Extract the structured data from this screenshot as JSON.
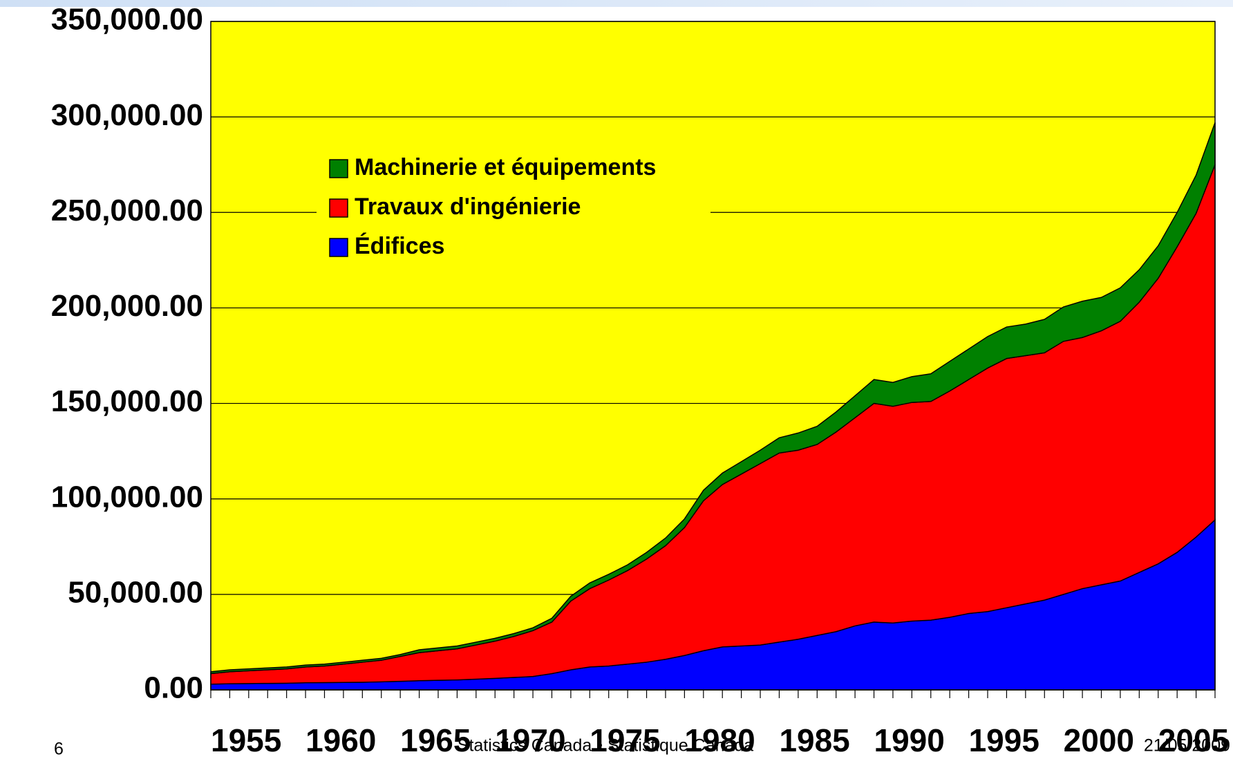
{
  "chart_data": {
    "type": "stacked-area",
    "x": [
      1955,
      1956,
      1957,
      1958,
      1959,
      1960,
      1961,
      1962,
      1963,
      1964,
      1965,
      1966,
      1967,
      1968,
      1969,
      1970,
      1971,
      1972,
      1973,
      1974,
      1975,
      1976,
      1977,
      1978,
      1979,
      1980,
      1981,
      1982,
      1983,
      1984,
      1985,
      1986,
      1987,
      1988,
      1989,
      1990,
      1991,
      1992,
      1993,
      1994,
      1995,
      1996,
      1997,
      1998,
      1999,
      2000,
      2001,
      2002,
      2003,
      2004,
      2005,
      2006,
      2007,
      2008
    ],
    "series": [
      {
        "name": "Édifices",
        "color": "#0000ff",
        "values": [
          3000,
          3200,
          3300,
          3400,
          3500,
          3700,
          3800,
          3900,
          4000,
          4200,
          4500,
          4800,
          5000,
          5200,
          5600,
          6000,
          6500,
          7000,
          8500,
          10500,
          12000,
          12500,
          13500,
          14500,
          16000,
          18000,
          20500,
          22500,
          23000,
          23500,
          25000,
          26500,
          28500,
          30500,
          33500,
          35500,
          35000,
          36000,
          36500,
          38000,
          40000,
          41000,
          43000,
          45000,
          47000,
          50000,
          53000,
          55000,
          57000,
          61500,
          66000,
          72000,
          80000,
          89000
        ]
      },
      {
        "name": "Travaux d'ingénierie",
        "color": "#ff0000",
        "values": [
          5500,
          6300,
          6700,
          7100,
          7500,
          8300,
          8700,
          9600,
          10500,
          11300,
          13000,
          14700,
          15500,
          16300,
          17900,
          19500,
          21500,
          24000,
          27000,
          36000,
          41000,
          45000,
          49000,
          54000,
          59500,
          67000,
          78500,
          85000,
          90000,
          95000,
          99000,
          99000,
          100000,
          104500,
          109000,
          114500,
          113500,
          114500,
          114500,
          118500,
          122500,
          127500,
          130500,
          130000,
          129500,
          132500,
          131500,
          133000,
          136000,
          141500,
          149500,
          160000,
          169500,
          186000
        ]
      },
      {
        "name": "Machinerie et équipements",
        "color": "#008000",
        "values": [
          1000,
          1000,
          1000,
          1000,
          1000,
          1000,
          1000,
          1000,
          1000,
          1000,
          1000,
          1500,
          1500,
          1500,
          1500,
          1500,
          1500,
          1500,
          2000,
          2500,
          3000,
          3000,
          3000,
          3500,
          4000,
          4500,
          5500,
          6000,
          6500,
          7000,
          8000,
          9000,
          9500,
          10500,
          11500,
          12500,
          12500,
          13500,
          14500,
          15500,
          16000,
          16500,
          16500,
          16500,
          17500,
          18000,
          19000,
          17500,
          17500,
          17000,
          17000,
          18000,
          20000,
          22000
        ]
      }
    ],
    "xlim": [
      1955,
      2008
    ],
    "xticks": [
      1955,
      1960,
      1965,
      1970,
      1975,
      1980,
      1985,
      1990,
      1995,
      2000,
      2005
    ],
    "ylim": [
      0,
      350000
    ],
    "yticks": [
      {
        "value": 0,
        "label": "0.00"
      },
      {
        "value": 50000,
        "label": "50,000.00"
      },
      {
        "value": 100000,
        "label": "100,000.00"
      },
      {
        "value": 150000,
        "label": "150,000.00"
      },
      {
        "value": 200000,
        "label": "200,000.00"
      },
      {
        "value": 250000,
        "label": "250,000.00"
      },
      {
        "value": 300000,
        "label": "300,000.00"
      },
      {
        "value": 350000,
        "label": "350,000.00"
      }
    ],
    "grid": true,
    "background": "#ffff00",
    "legend": "upper left"
  },
  "footer": {
    "page": "6",
    "source": "Statistics Canada • Statistique Canada",
    "date": "21/05/2009"
  }
}
